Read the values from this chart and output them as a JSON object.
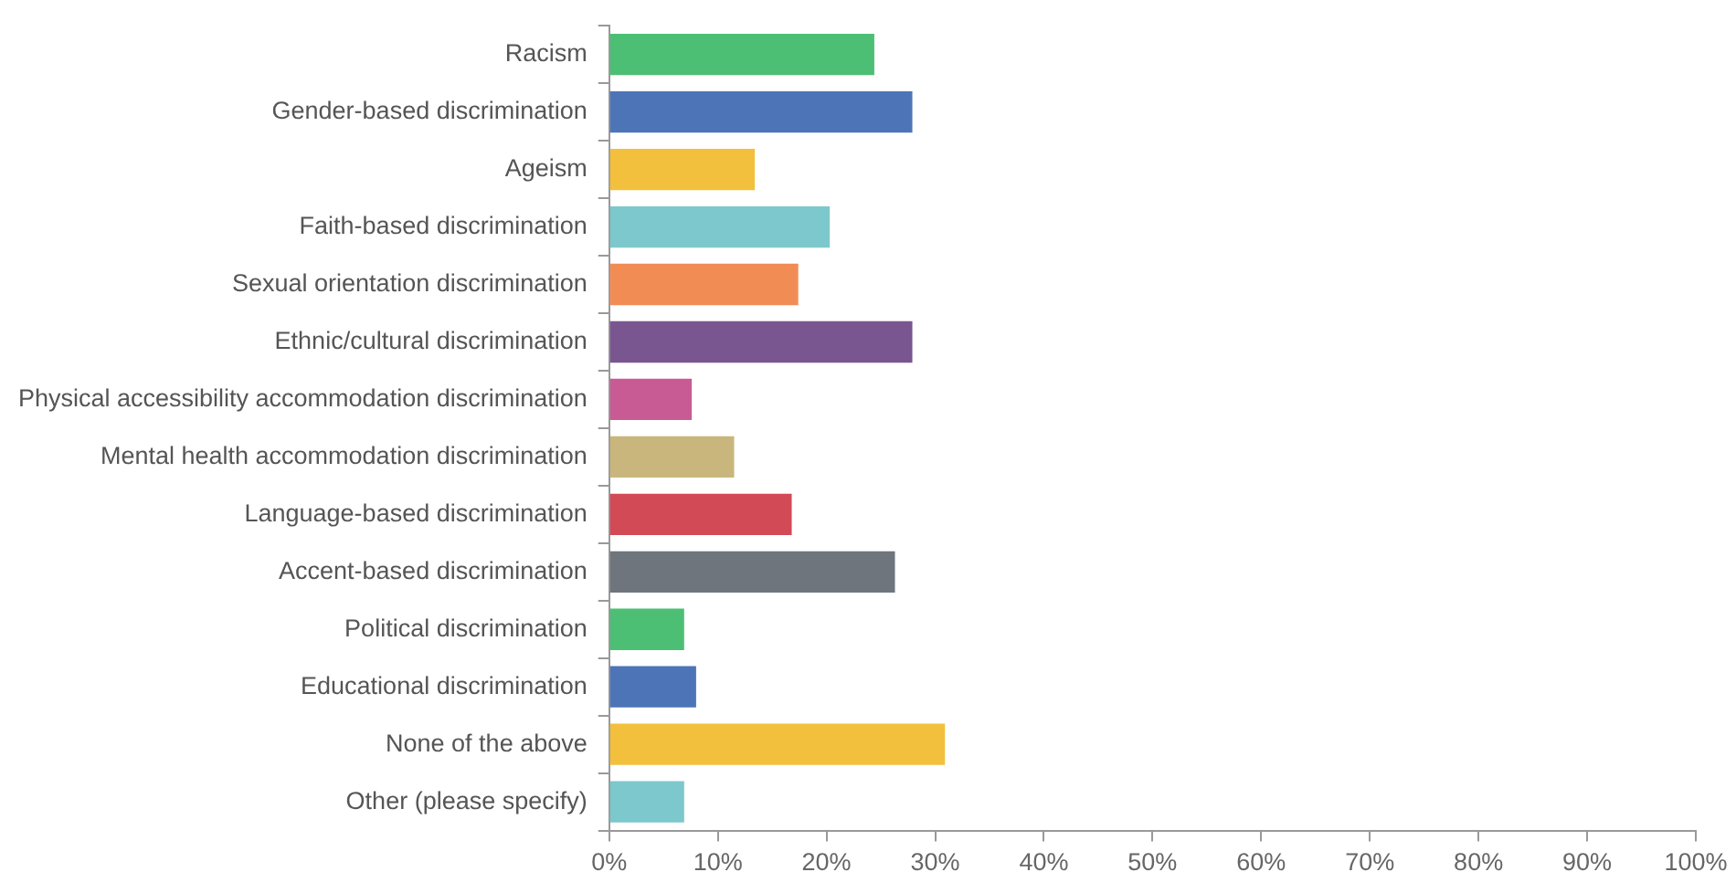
{
  "chart_data": {
    "type": "bar",
    "orientation": "horizontal",
    "categories": [
      "Racism",
      "Gender-based discrimination",
      "Ageism",
      "Faith-based discrimination",
      "Sexual orientation discrimination",
      "Ethnic/cultural discrimination",
      "Physical accessibility accommodation discrimination",
      "Mental health accommodation discrimination",
      "Language-based discrimination",
      "Accent-based discrimination",
      "Political discrimination",
      "Educational discrimination",
      "None of the above",
      "Other (please specify)"
    ],
    "values": [
      24.4,
      27.9,
      13.4,
      20.3,
      17.4,
      27.9,
      7.6,
      11.5,
      16.8,
      26.3,
      6.9,
      8.0,
      30.9,
      6.9
    ],
    "colors": [
      "#4dbf74",
      "#4e74b8",
      "#f2c03c",
      "#7cc8cc",
      "#f28c55",
      "#7a5690",
      "#c95b94",
      "#c9b67c",
      "#d24a56",
      "#6e757d",
      "#4dbf74",
      "#4e74b8",
      "#f2c03c",
      "#7cc8cc"
    ],
    "xlim": [
      0,
      100
    ],
    "xticks": [
      {
        "value": 0,
        "label": "0%"
      },
      {
        "value": 10,
        "label": "10%"
      },
      {
        "value": 20,
        "label": "20%"
      },
      {
        "value": 30,
        "label": "30%"
      },
      {
        "value": 40,
        "label": "40%"
      },
      {
        "value": 50,
        "label": "50%"
      },
      {
        "value": 60,
        "label": "60%"
      },
      {
        "value": 70,
        "label": "70%"
      },
      {
        "value": 80,
        "label": "80%"
      },
      {
        "value": 90,
        "label": "90%"
      },
      {
        "value": 100,
        "label": "100%"
      }
    ],
    "grid": false,
    "legend": false
  }
}
